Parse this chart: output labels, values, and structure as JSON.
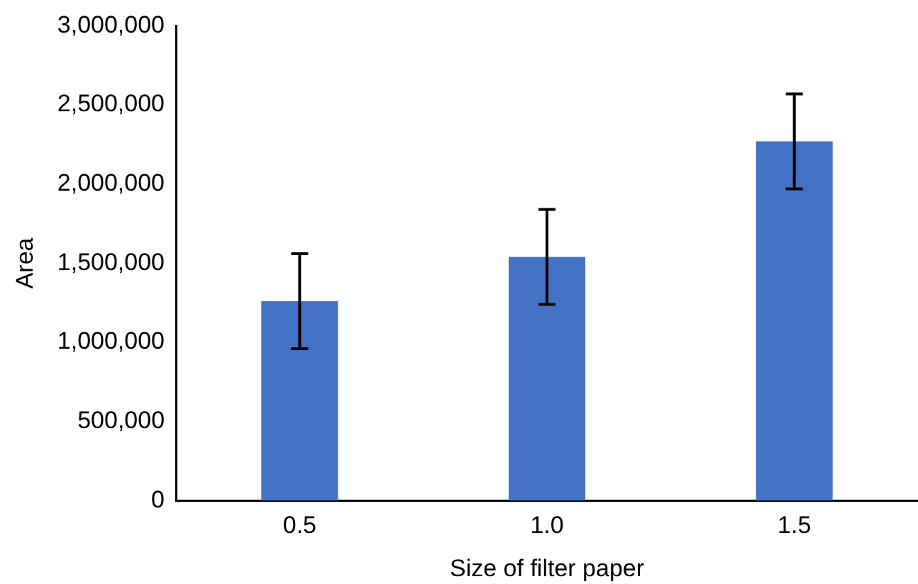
{
  "chart_data": {
    "type": "bar",
    "xlabel": "Size of filter paper",
    "ylabel": "Area",
    "categories": [
      "0.5",
      "1.0",
      "1.5"
    ],
    "values": [
      1260000,
      1540000,
      2270000
    ],
    "errors": [
      300000,
      300000,
      300000
    ],
    "color": "#4472c4",
    "ylim": [
      0,
      3000000
    ],
    "yticks": [
      0,
      {
        "value": 500000,
        "label": "500,000"
      },
      {
        "value": 1000000,
        "label": "1,000,000"
      },
      {
        "value": 1500000,
        "label": "1,500,000"
      },
      {
        "value": 2000000,
        "label": "2,000,000"
      },
      {
        "value": 2500000,
        "label": "2,500,000"
      },
      {
        "value": 3000000,
        "label": "3,000,000"
      }
    ],
    "grid": false,
    "legend": false
  }
}
